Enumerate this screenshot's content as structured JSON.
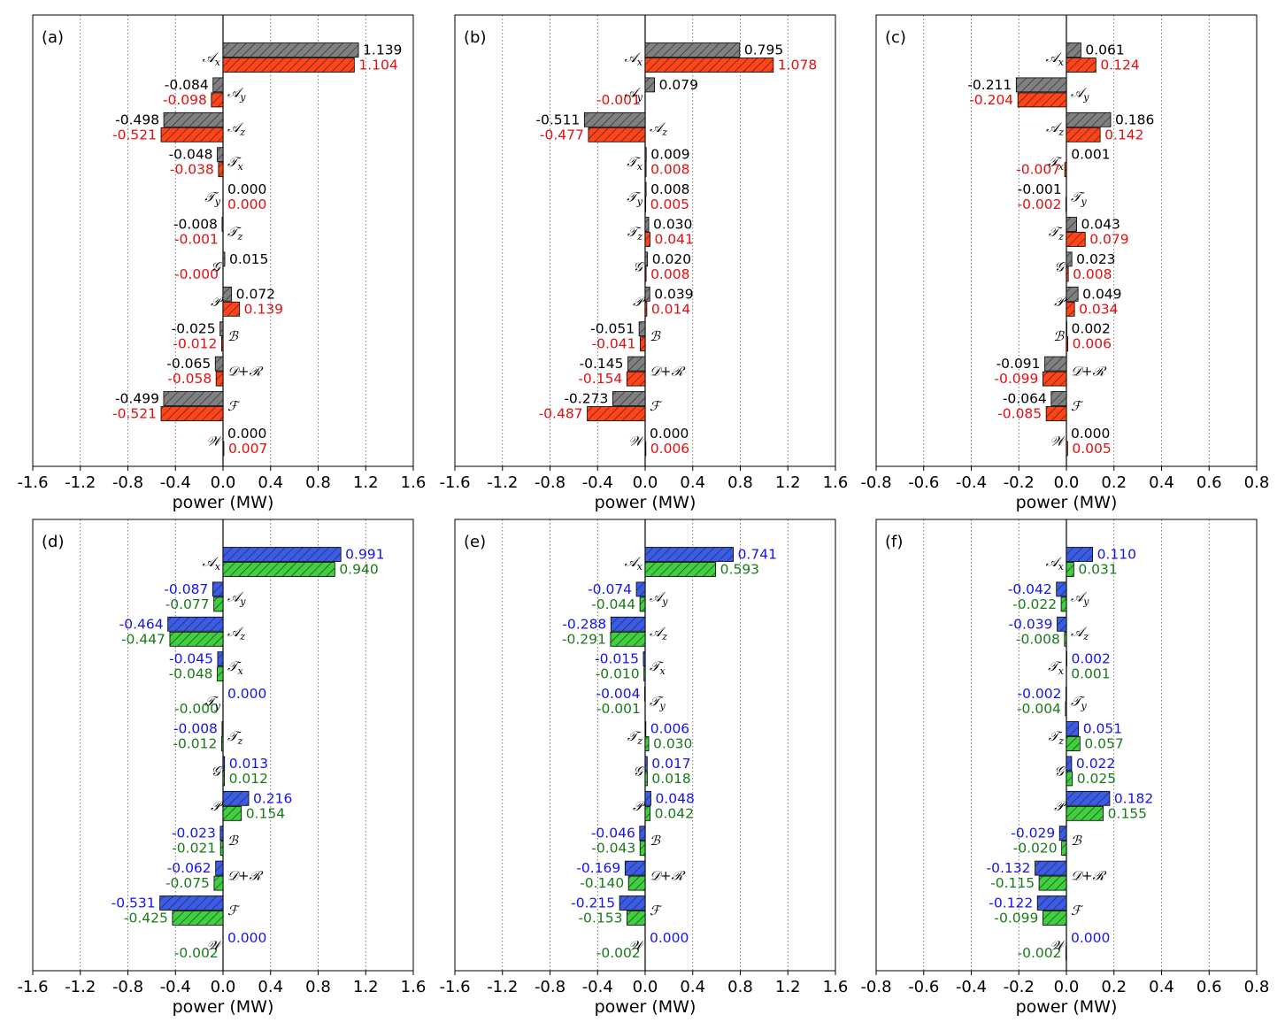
{
  "colors": {
    "gray": "#808080",
    "red": "#ff4419",
    "blue": "#3a5ce6",
    "green": "#3fcf3f",
    "label_black": "#000000",
    "label_red": "#e01010",
    "label_blue": "#1515e8",
    "label_green": "#1a7a1a"
  },
  "chart_data": [
    {
      "type": "bar",
      "orientation": "horizontal",
      "panel": "(a)",
      "xlabel": "power (MW)",
      "xlim": [
        -1.6,
        1.6
      ],
      "xticks": [
        -1.6,
        -1.2,
        -0.8,
        -0.4,
        0.0,
        0.4,
        0.8,
        1.2,
        1.6
      ],
      "xtick_labels": [
        "-1.6",
        "-1.2",
        "-0.8",
        "-0.4",
        "0.0",
        "0.4",
        "0.8",
        "1.2",
        "1.6"
      ],
      "categories": [
        "A_x",
        "A_y",
        "A_z",
        "T_x",
        "T_y",
        "T_z",
        "G",
        "P",
        "B",
        "D+R",
        "F",
        "W"
      ],
      "series": [
        {
          "name": "series 1",
          "color_key": "gray",
          "label_color_key": "label_black",
          "values": [
            1.139,
            -0.084,
            -0.498,
            -0.048,
            0.0,
            -0.008,
            0.015,
            0.072,
            -0.025,
            -0.065,
            -0.499,
            0.0
          ],
          "labels": [
            "1.139",
            "-0.084",
            "-0.498",
            "-0.048",
            "0.000",
            "-0.008",
            "0.015",
            "0.072",
            "-0.025",
            "-0.065",
            "-0.499",
            "0.000"
          ]
        },
        {
          "name": "series 2",
          "color_key": "red",
          "label_color_key": "label_red",
          "values": [
            1.104,
            -0.098,
            -0.521,
            -0.038,
            0.0,
            -0.001,
            -0.0,
            0.139,
            -0.012,
            -0.058,
            -0.521,
            0.007
          ],
          "labels": [
            "1.104",
            "-0.098",
            "-0.521",
            "-0.038",
            "0.000",
            "-0.001",
            "-0.000",
            "0.139",
            "-0.012",
            "-0.058",
            "-0.521",
            "0.007"
          ]
        }
      ]
    },
    {
      "type": "bar",
      "orientation": "horizontal",
      "panel": "(b)",
      "xlabel": "power (MW)",
      "xlim": [
        -1.6,
        1.6
      ],
      "xticks": [
        -1.6,
        -1.2,
        -0.8,
        -0.4,
        0.0,
        0.4,
        0.8,
        1.2,
        1.6
      ],
      "xtick_labels": [
        "-1.6",
        "-1.2",
        "-0.8",
        "-0.4",
        "0.0",
        "0.4",
        "0.8",
        "1.2",
        "1.6"
      ],
      "categories": [
        "A_x",
        "A_y",
        "A_z",
        "T_x",
        "T_y",
        "T_z",
        "G",
        "P",
        "B",
        "D+R",
        "F",
        "W"
      ],
      "series": [
        {
          "name": "series 1",
          "color_key": "gray",
          "label_color_key": "label_black",
          "values": [
            0.795,
            0.079,
            -0.511,
            0.009,
            0.008,
            0.03,
            0.02,
            0.039,
            -0.051,
            -0.145,
            -0.273,
            0.0
          ],
          "labels": [
            "0.795",
            "0.079",
            "-0.511",
            "0.009",
            "0.008",
            "0.030",
            "0.020",
            "0.039",
            "-0.051",
            "-0.145",
            "-0.273",
            "0.000"
          ]
        },
        {
          "name": "series 2",
          "color_key": "red",
          "label_color_key": "label_red",
          "values": [
            1.078,
            -0.001,
            -0.477,
            0.008,
            0.005,
            0.041,
            0.008,
            0.014,
            -0.041,
            -0.154,
            -0.487,
            0.006
          ],
          "labels": [
            "1.078",
            "-0.001",
            "-0.477",
            "0.008",
            "0.005",
            "0.041",
            "0.008",
            "0.014",
            "-0.041",
            "-0.154",
            "-0.487",
            "0.006"
          ]
        }
      ]
    },
    {
      "type": "bar",
      "orientation": "horizontal",
      "panel": "(c)",
      "xlabel": "power (MW)",
      "xlim": [
        -0.8,
        0.8
      ],
      "xticks": [
        -0.8,
        -0.6,
        -0.4,
        -0.2,
        0.0,
        0.2,
        0.4,
        0.6,
        0.8
      ],
      "xtick_labels": [
        "-0.8",
        "-0.6",
        "-0.4",
        "-0.2",
        "0.0",
        "0.2",
        "0.4",
        "0.6",
        "0.8"
      ],
      "categories": [
        "A_x",
        "A_y",
        "A_z",
        "T_x",
        "T_y",
        "T_z",
        "G",
        "P",
        "B",
        "D+R",
        "F",
        "W"
      ],
      "series": [
        {
          "name": "series 1",
          "color_key": "gray",
          "label_color_key": "label_black",
          "values": [
            0.061,
            -0.211,
            0.186,
            0.001,
            -0.001,
            0.043,
            0.023,
            0.049,
            0.002,
            -0.091,
            -0.064,
            0.0
          ],
          "labels": [
            "0.061",
            "-0.211",
            "0.186",
            "0.001",
            "-0.001",
            "0.043",
            "0.023",
            "0.049",
            "0.002",
            "-0.091",
            "-0.064",
            "0.000"
          ]
        },
        {
          "name": "series 2",
          "color_key": "red",
          "label_color_key": "label_red",
          "values": [
            0.124,
            -0.204,
            0.142,
            -0.007,
            -0.002,
            0.079,
            0.008,
            0.034,
            0.006,
            -0.099,
            -0.085,
            0.005
          ],
          "labels": [
            "0.124",
            "-0.204",
            "0.142",
            "-0.007",
            "-0.002",
            "0.079",
            "0.008",
            "0.034",
            "0.006",
            "-0.099",
            "-0.085",
            "0.005"
          ]
        }
      ]
    },
    {
      "type": "bar",
      "orientation": "horizontal",
      "panel": "(d)",
      "xlabel": "power (MW)",
      "xlim": [
        -1.6,
        1.6
      ],
      "xticks": [
        -1.6,
        -1.2,
        -0.8,
        -0.4,
        0.0,
        0.4,
        0.8,
        1.2,
        1.6
      ],
      "xtick_labels": [
        "-1.6",
        "-1.2",
        "-0.8",
        "-0.4",
        "0.0",
        "0.4",
        "0.8",
        "1.2",
        "1.6"
      ],
      "categories": [
        "A_x",
        "A_y",
        "A_z",
        "T_x",
        "T_y",
        "T_z",
        "G",
        "P",
        "B",
        "D+R",
        "F",
        "W"
      ],
      "series": [
        {
          "name": "series 1",
          "color_key": "blue",
          "label_color_key": "label_blue",
          "values": [
            0.991,
            -0.087,
            -0.464,
            -0.045,
            0.0,
            -0.008,
            0.013,
            0.216,
            -0.023,
            -0.062,
            -0.531,
            0.0
          ],
          "labels": [
            "0.991",
            "-0.087",
            "-0.464",
            "-0.045",
            "0.000",
            "-0.008",
            "0.013",
            "0.216",
            "-0.023",
            "-0.062",
            "-0.531",
            "0.000"
          ]
        },
        {
          "name": "series 2",
          "color_key": "green",
          "label_color_key": "label_green",
          "values": [
            0.94,
            -0.077,
            -0.447,
            -0.048,
            -0.0,
            -0.012,
            0.012,
            0.154,
            -0.021,
            -0.075,
            -0.425,
            -0.002
          ],
          "labels": [
            "0.940",
            "-0.077",
            "-0.447",
            "-0.048",
            "-0.000",
            "-0.012",
            "0.012",
            "0.154",
            "-0.021",
            "-0.075",
            "-0.425",
            "-0.002"
          ]
        }
      ]
    },
    {
      "type": "bar",
      "orientation": "horizontal",
      "panel": "(e)",
      "xlabel": "power (MW)",
      "xlim": [
        -1.6,
        1.6
      ],
      "xticks": [
        -1.6,
        -1.2,
        -0.8,
        -0.4,
        0.0,
        0.4,
        0.8,
        1.2,
        1.6
      ],
      "xtick_labels": [
        "-1.6",
        "-1.2",
        "-0.8",
        "-0.4",
        "0.0",
        "0.4",
        "0.8",
        "1.2",
        "1.6"
      ],
      "categories": [
        "A_x",
        "A_y",
        "A_z",
        "T_x",
        "T_y",
        "T_z",
        "G",
        "P",
        "B",
        "D+R",
        "F",
        "W"
      ],
      "series": [
        {
          "name": "series 1",
          "color_key": "blue",
          "label_color_key": "label_blue",
          "values": [
            0.741,
            -0.074,
            -0.288,
            -0.015,
            -0.004,
            0.006,
            0.017,
            0.048,
            -0.046,
            -0.169,
            -0.215,
            0.0
          ],
          "labels": [
            "0.741",
            "-0.074",
            "-0.288",
            "-0.015",
            "-0.004",
            "0.006",
            "0.017",
            "0.048",
            "-0.046",
            "-0.169",
            "-0.215",
            "0.000"
          ]
        },
        {
          "name": "series 2",
          "color_key": "green",
          "label_color_key": "label_green",
          "values": [
            0.593,
            -0.044,
            -0.291,
            -0.01,
            -0.001,
            0.03,
            0.018,
            0.042,
            -0.043,
            -0.14,
            -0.153,
            -0.002
          ],
          "labels": [
            "0.593",
            "-0.044",
            "-0.291",
            "-0.010",
            "-0.001",
            "0.030",
            "0.018",
            "0.042",
            "-0.043",
            "-0.140",
            "-0.153",
            "-0.002"
          ]
        }
      ]
    },
    {
      "type": "bar",
      "orientation": "horizontal",
      "panel": "(f)",
      "xlabel": "power (MW)",
      "xlim": [
        -0.8,
        0.8
      ],
      "xticks": [
        -0.8,
        -0.6,
        -0.4,
        -0.2,
        0.0,
        0.2,
        0.4,
        0.6,
        0.8
      ],
      "xtick_labels": [
        "-0.8",
        "-0.6",
        "-0.4",
        "-0.2",
        "0.0",
        "0.2",
        "0.4",
        "0.6",
        "0.8"
      ],
      "categories": [
        "A_x",
        "A_y",
        "A_z",
        "T_x",
        "T_y",
        "T_z",
        "G",
        "P",
        "B",
        "D+R",
        "F",
        "W"
      ],
      "series": [
        {
          "name": "series 1",
          "color_key": "blue",
          "label_color_key": "label_blue",
          "values": [
            0.11,
            -0.042,
            -0.039,
            0.002,
            -0.002,
            0.051,
            0.022,
            0.182,
            -0.029,
            -0.132,
            -0.122,
            0.0
          ],
          "labels": [
            "0.110",
            "-0.042",
            "-0.039",
            "0.002",
            "-0.002",
            "0.051",
            "0.022",
            "0.182",
            "-0.029",
            "-0.132",
            "-0.122",
            "0.000"
          ]
        },
        {
          "name": "series 2",
          "color_key": "green",
          "label_color_key": "label_green",
          "values": [
            0.031,
            -0.022,
            -0.008,
            0.001,
            -0.004,
            0.057,
            0.025,
            0.155,
            -0.02,
            -0.115,
            -0.099,
            -0.002
          ],
          "labels": [
            "0.031",
            "-0.022",
            "-0.008",
            "0.001",
            "-0.004",
            "0.057",
            "0.025",
            "0.155",
            "-0.020",
            "-0.115",
            "-0.099",
            "-0.002"
          ]
        }
      ]
    }
  ]
}
